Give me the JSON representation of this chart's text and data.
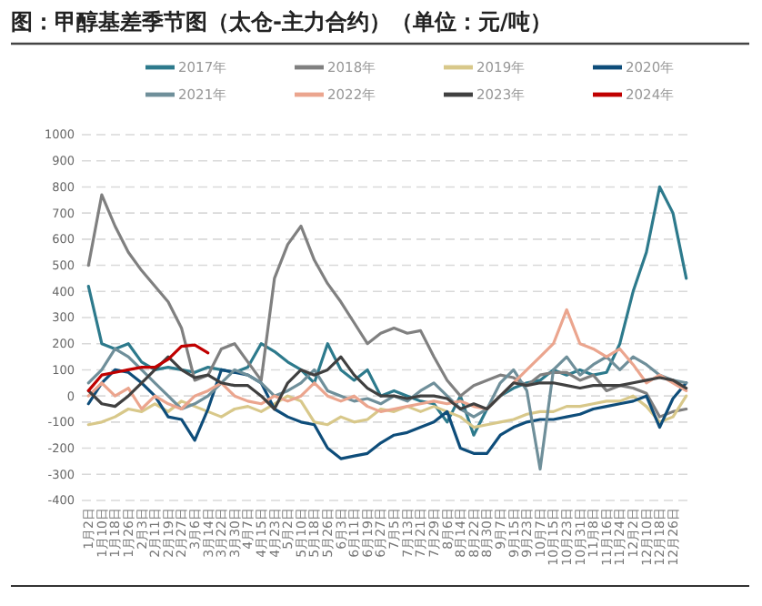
{
  "chart_data": {
    "type": "line",
    "title": "图：甲醇基差季节图（太仓-主力合约）（单位：元/吨）",
    "categories": [
      "1月2日",
      "1月10日",
      "1月18日",
      "1月26日",
      "2月3日",
      "2月11日",
      "2月19日",
      "2月27日",
      "3月6日",
      "3月14日",
      "3月22日",
      "3月30日",
      "4月7日",
      "4月15日",
      "4月23日",
      "5月2日",
      "5月10日",
      "5月18日",
      "5月26日",
      "6月3日",
      "6月11日",
      "6月19日",
      "6月27日",
      "7月5日",
      "7月13日",
      "7月21日",
      "7月29日",
      "8月6日",
      "8月14日",
      "8月22日",
      "8月30日",
      "9月7日",
      "9月15日",
      "9月23日",
      "10月7日",
      "10月15日",
      "10月23日",
      "10月31日",
      "11月8日",
      "11月16日",
      "11月24日",
      "12月2日",
      "12月10日",
      "12月18日",
      "12月26日",
      null
    ],
    "series": [
      {
        "name": "2017年",
        "color": "#2d7a8c",
        "values": [
          420,
          200,
          180,
          200,
          130,
          100,
          110,
          100,
          90,
          110,
          100,
          90,
          110,
          200,
          170,
          130,
          100,
          50,
          200,
          100,
          60,
          100,
          0,
          20,
          0,
          -20,
          -30,
          -100,
          0,
          -150,
          -50,
          0,
          30,
          50,
          60,
          100,
          80,
          100,
          80,
          90,
          200,
          400,
          550,
          800,
          700,
          450
        ]
      },
      {
        "name": "2018年",
        "color": "#808080",
        "values": [
          500,
          770,
          650,
          550,
          480,
          420,
          360,
          260,
          60,
          80,
          180,
          200,
          130,
          60,
          450,
          580,
          650,
          520,
          430,
          360,
          280,
          200,
          240,
          260,
          240,
          250,
          150,
          60,
          0,
          40,
          60,
          80,
          70,
          40,
          80,
          90,
          90,
          60,
          80,
          20,
          40,
          30,
          10,
          -80,
          -60,
          -50
        ]
      },
      {
        "name": "2019年",
        "color": "#d8c88a",
        "values": [
          -110,
          -100,
          -80,
          -50,
          -60,
          -30,
          -60,
          -20,
          -40,
          -60,
          -80,
          -50,
          -40,
          -60,
          -30,
          0,
          -20,
          -100,
          -110,
          -80,
          -100,
          -90,
          -50,
          -60,
          -40,
          -60,
          -40,
          -60,
          -80,
          -120,
          -110,
          -100,
          -90,
          -70,
          -60,
          -60,
          -40,
          -40,
          -30,
          -20,
          -20,
          0,
          -40,
          -100,
          -80,
          0
        ]
      },
      {
        "name": "2020年",
        "color": "#0e4d7a",
        "values": [
          -30,
          50,
          100,
          90,
          50,
          0,
          -80,
          -90,
          -170,
          -50,
          100,
          90,
          80,
          50,
          -50,
          -80,
          -100,
          -110,
          -200,
          -240,
          -230,
          -220,
          -180,
          -150,
          -140,
          -120,
          -100,
          -60,
          -200,
          -220,
          -220,
          -150,
          -120,
          -100,
          -90,
          -90,
          -80,
          -70,
          -50,
          -40,
          -30,
          -20,
          0,
          -120,
          -10,
          50
        ]
      },
      {
        "name": "2021年",
        "color": "#6f8f9a",
        "values": [
          50,
          100,
          180,
          150,
          100,
          50,
          0,
          -50,
          -30,
          0,
          50,
          100,
          80,
          50,
          0,
          20,
          50,
          100,
          20,
          0,
          -20,
          -10,
          -30,
          0,
          -20,
          20,
          50,
          0,
          -50,
          -80,
          -50,
          50,
          100,
          20,
          -280,
          100,
          150,
          80,
          120,
          150,
          100,
          150,
          120,
          80,
          60,
          50
        ]
      },
      {
        "name": "2022年",
        "color": "#eba58e",
        "values": [
          0,
          50,
          0,
          30,
          -50,
          0,
          -30,
          -50,
          0,
          20,
          50,
          0,
          -20,
          -30,
          0,
          -20,
          0,
          50,
          0,
          -20,
          0,
          -40,
          -60,
          -50,
          -40,
          -30,
          -20,
          -30,
          -20,
          -40,
          -50,
          0,
          50,
          100,
          150,
          200,
          330,
          200,
          180,
          150,
          180,
          120,
          50,
          80,
          50,
          20
        ]
      },
      {
        "name": "2023年",
        "color": "#404040",
        "values": [
          20,
          -30,
          -40,
          0,
          50,
          100,
          150,
          100,
          70,
          80,
          50,
          40,
          40,
          0,
          -50,
          50,
          100,
          80,
          100,
          150,
          80,
          30,
          0,
          0,
          -10,
          0,
          0,
          -10,
          -50,
          -30,
          -50,
          0,
          50,
          40,
          50,
          50,
          40,
          30,
          40,
          40,
          40,
          50,
          60,
          70,
          60,
          30
        ]
      },
      {
        "name": "2024年",
        "color": "#c00000",
        "values": [
          20,
          80,
          90,
          100,
          110,
          110,
          140,
          190,
          195,
          165,
          null,
          null,
          null,
          null,
          null,
          null,
          null,
          null,
          null,
          null,
          null,
          null,
          null,
          null,
          null,
          null,
          null,
          null,
          null,
          null,
          null,
          null,
          null,
          null,
          null,
          null,
          null,
          null,
          null,
          null,
          null,
          null,
          null,
          null,
          null,
          null
        ]
      }
    ],
    "ylim": [
      -400,
      1000
    ],
    "yticks": [
      -400,
      -300,
      -200,
      -100,
      0,
      100,
      200,
      300,
      400,
      500,
      600,
      700,
      800,
      900,
      1000
    ],
    "grid": "y",
    "legend": "top",
    "line_style": "solid"
  }
}
